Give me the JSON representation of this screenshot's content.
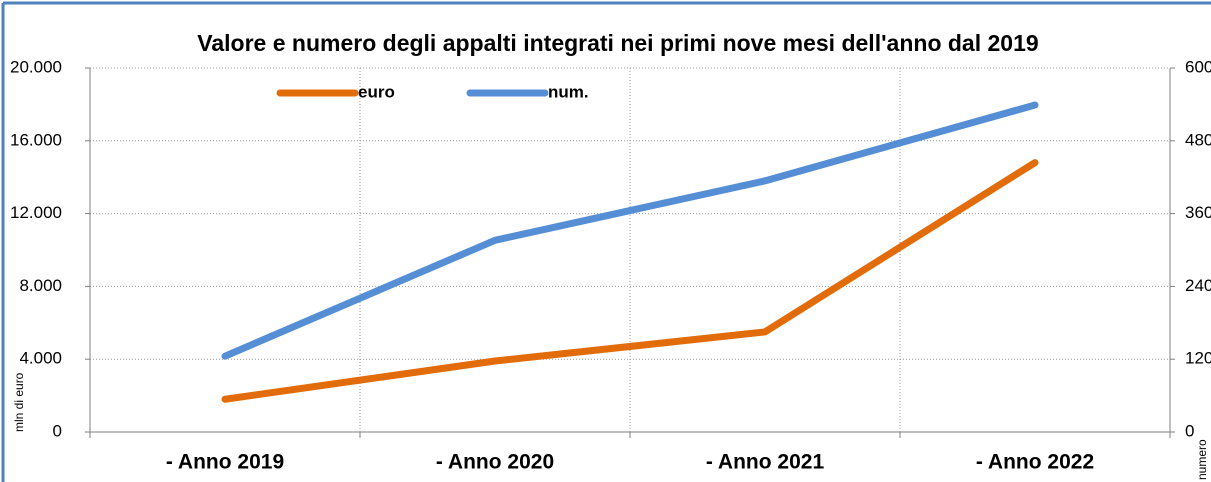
{
  "chart_data": {
    "type": "line",
    "title": "Valore e numero degli appalti integrati nei primi nove mesi dell'anno dal 2019",
    "y_label": "mln di euro",
    "y2_label": "numero",
    "categories": [
      "- Anno 2019",
      "- Anno 2020",
      "- Anno 2021",
      "- Anno 2022"
    ],
    "series": [
      {
        "name": "euro",
        "color": "#e36c0a",
        "values": [
          1800,
          3900,
          5500,
          14800
        ]
      },
      {
        "name": "num.",
        "color": "#558ed5",
        "values": [
          125,
          316,
          414,
          539
        ],
        "axis": "y2"
      }
    ],
    "ylim": [
      0,
      20000
    ],
    "yticks": [
      {
        "value": 0,
        "label": "0"
      },
      {
        "value": 4000,
        "label": "4.000"
      },
      {
        "value": 8000,
        "label": "8.000"
      },
      {
        "value": 12000,
        "label": "12.000"
      },
      {
        "value": 16000,
        "label": "16.000"
      },
      {
        "value": 20000,
        "label": "20.000"
      }
    ],
    "y2lim": [
      0,
      600
    ],
    "y2ticks": [
      0,
      120,
      240,
      360,
      480,
      600
    ],
    "grid": true,
    "legend": "top"
  }
}
